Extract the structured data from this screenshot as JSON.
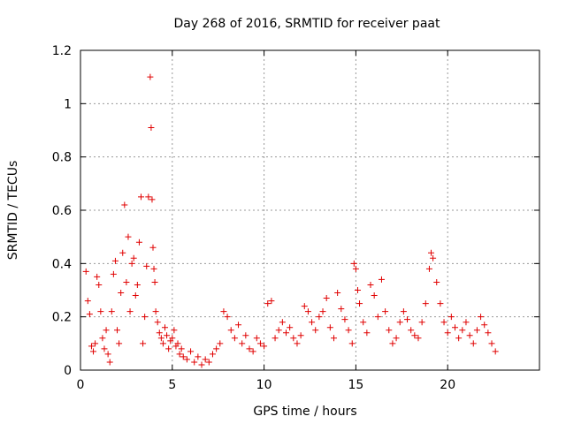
{
  "chart_data": {
    "type": "scatter",
    "title": "Day 268 of 2016, SRMTID for receiver paat",
    "xlabel": "GPS time / hours",
    "ylabel": "SRMTID / TECUs",
    "xlim": [
      0,
      25
    ],
    "ylim": [
      0,
      1.2
    ],
    "xticks": [
      "0",
      "5",
      "10",
      "15",
      "20"
    ],
    "yticks": [
      "0",
      "0.2",
      "0.4",
      "0.6",
      "0.8",
      "1",
      "1.2"
    ],
    "grid": true,
    "marker": "+",
    "marker_color": "#e00000",
    "series": [
      {
        "points": [
          [
            0.3,
            0.37
          ],
          [
            0.4,
            0.26
          ],
          [
            0.5,
            0.21
          ],
          [
            0.6,
            0.09
          ],
          [
            0.7,
            0.07
          ],
          [
            0.8,
            0.1
          ],
          [
            0.9,
            0.35
          ],
          [
            1.0,
            0.32
          ],
          [
            1.1,
            0.22
          ],
          [
            1.2,
            0.12
          ],
          [
            1.3,
            0.08
          ],
          [
            1.4,
            0.15
          ],
          [
            1.5,
            0.06
          ],
          [
            1.6,
            0.03
          ],
          [
            1.7,
            0.22
          ],
          [
            1.8,
            0.36
          ],
          [
            1.9,
            0.41
          ],
          [
            2.0,
            0.15
          ],
          [
            2.1,
            0.1
          ],
          [
            2.2,
            0.29
          ],
          [
            2.3,
            0.44
          ],
          [
            2.4,
            0.62
          ],
          [
            2.5,
            0.33
          ],
          [
            2.6,
            0.5
          ],
          [
            2.7,
            0.22
          ],
          [
            2.8,
            0.4
          ],
          [
            2.9,
            0.42
          ],
          [
            3.0,
            0.28
          ],
          [
            3.1,
            0.32
          ],
          [
            3.2,
            0.48
          ],
          [
            3.3,
            0.65
          ],
          [
            3.4,
            0.1
          ],
          [
            3.5,
            0.2
          ],
          [
            3.6,
            0.39
          ],
          [
            3.7,
            0.65
          ],
          [
            3.8,
            1.1
          ],
          [
            3.85,
            0.91
          ],
          [
            3.9,
            0.64
          ],
          [
            3.95,
            0.46
          ],
          [
            4.0,
            0.38
          ],
          [
            4.05,
            0.33
          ],
          [
            4.1,
            0.22
          ],
          [
            4.2,
            0.18
          ],
          [
            4.3,
            0.14
          ],
          [
            4.4,
            0.12
          ],
          [
            4.5,
            0.1
          ],
          [
            4.6,
            0.16
          ],
          [
            4.7,
            0.13
          ],
          [
            4.8,
            0.08
          ],
          [
            4.9,
            0.11
          ],
          [
            5.0,
            0.12
          ],
          [
            5.1,
            0.15
          ],
          [
            5.2,
            0.09
          ],
          [
            5.3,
            0.1
          ],
          [
            5.4,
            0.06
          ],
          [
            5.5,
            0.08
          ],
          [
            5.6,
            0.05
          ],
          [
            5.8,
            0.04
          ],
          [
            6.0,
            0.07
          ],
          [
            6.2,
            0.03
          ],
          [
            6.4,
            0.05
          ],
          [
            6.6,
            0.02
          ],
          [
            6.8,
            0.04
          ],
          [
            7.0,
            0.03
          ],
          [
            7.2,
            0.06
          ],
          [
            7.4,
            0.08
          ],
          [
            7.6,
            0.1
          ],
          [
            7.8,
            0.22
          ],
          [
            8.0,
            0.2
          ],
          [
            8.2,
            0.15
          ],
          [
            8.4,
            0.12
          ],
          [
            8.6,
            0.17
          ],
          [
            8.8,
            0.1
          ],
          [
            9.0,
            0.13
          ],
          [
            9.2,
            0.08
          ],
          [
            9.4,
            0.07
          ],
          [
            9.6,
            0.12
          ],
          [
            9.8,
            0.1
          ],
          [
            10.0,
            0.09
          ],
          [
            10.2,
            0.25
          ],
          [
            10.4,
            0.26
          ],
          [
            10.6,
            0.12
          ],
          [
            10.8,
            0.15
          ],
          [
            11.0,
            0.18
          ],
          [
            11.2,
            0.14
          ],
          [
            11.4,
            0.16
          ],
          [
            11.6,
            0.12
          ],
          [
            11.8,
            0.1
          ],
          [
            12.0,
            0.13
          ],
          [
            12.2,
            0.24
          ],
          [
            12.4,
            0.22
          ],
          [
            12.6,
            0.18
          ],
          [
            12.8,
            0.15
          ],
          [
            13.0,
            0.2
          ],
          [
            13.2,
            0.22
          ],
          [
            13.4,
            0.27
          ],
          [
            13.6,
            0.16
          ],
          [
            13.8,
            0.12
          ],
          [
            14.0,
            0.29
          ],
          [
            14.2,
            0.23
          ],
          [
            14.4,
            0.19
          ],
          [
            14.6,
            0.15
          ],
          [
            14.8,
            0.1
          ],
          [
            14.9,
            0.4
          ],
          [
            15.0,
            0.38
          ],
          [
            15.1,
            0.3
          ],
          [
            15.2,
            0.25
          ],
          [
            15.4,
            0.18
          ],
          [
            15.6,
            0.14
          ],
          [
            15.8,
            0.32
          ],
          [
            16.0,
            0.28
          ],
          [
            16.2,
            0.2
          ],
          [
            16.4,
            0.34
          ],
          [
            16.6,
            0.22
          ],
          [
            16.8,
            0.15
          ],
          [
            17.0,
            0.1
          ],
          [
            17.2,
            0.12
          ],
          [
            17.4,
            0.18
          ],
          [
            17.6,
            0.22
          ],
          [
            17.8,
            0.19
          ],
          [
            18.0,
            0.15
          ],
          [
            18.2,
            0.13
          ],
          [
            18.4,
            0.12
          ],
          [
            18.6,
            0.18
          ],
          [
            18.8,
            0.25
          ],
          [
            19.0,
            0.38
          ],
          [
            19.1,
            0.44
          ],
          [
            19.2,
            0.42
          ],
          [
            19.4,
            0.33
          ],
          [
            19.6,
            0.25
          ],
          [
            19.8,
            0.18
          ],
          [
            20.0,
            0.14
          ],
          [
            20.2,
            0.2
          ],
          [
            20.4,
            0.16
          ],
          [
            20.6,
            0.12
          ],
          [
            20.8,
            0.15
          ],
          [
            21.0,
            0.18
          ],
          [
            21.2,
            0.13
          ],
          [
            21.4,
            0.1
          ],
          [
            21.6,
            0.15
          ],
          [
            21.8,
            0.2
          ],
          [
            22.0,
            0.17
          ],
          [
            22.2,
            0.14
          ],
          [
            22.4,
            0.1
          ],
          [
            22.6,
            0.07
          ]
        ]
      }
    ]
  }
}
